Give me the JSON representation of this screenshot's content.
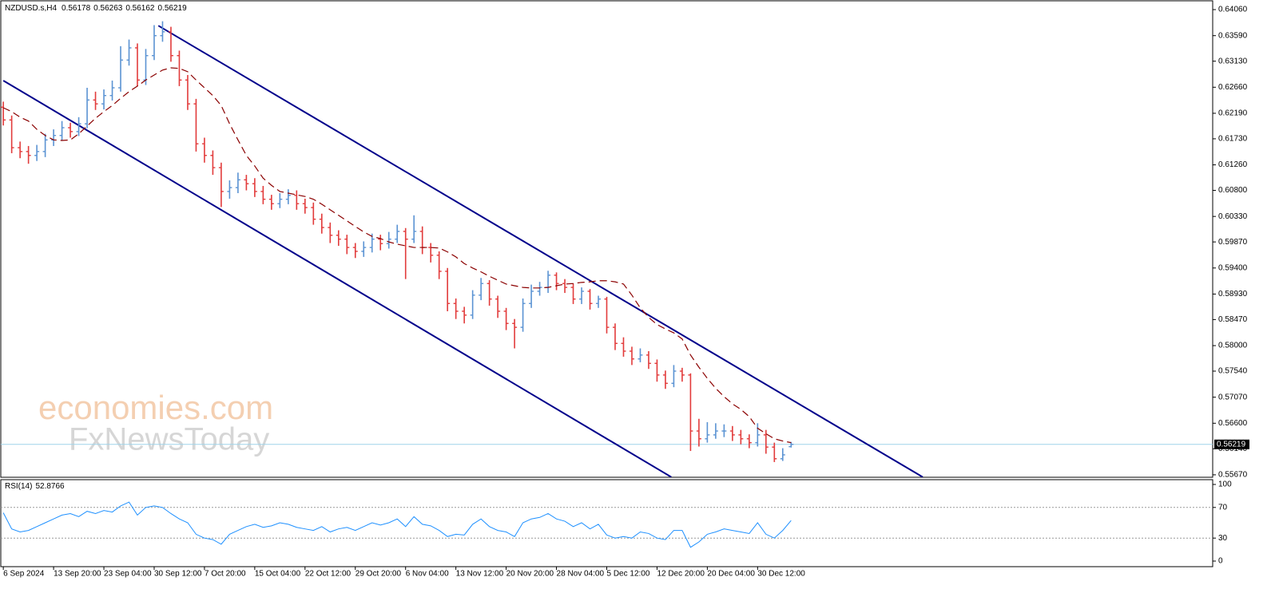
{
  "chart_data": [
    {
      "type": "ohlc",
      "title": "NZDUSD.s,H4",
      "up_color": "#5b93d3",
      "down_color": "#e23b3b",
      "xlim": [
        -0.3,
        144.3
      ],
      "ylim": [
        0.5564,
        0.6419
      ],
      "yticks": [
        {
          "value": 0.6406,
          "label": "0.64060"
        },
        {
          "value": 0.6359,
          "label": "0.63590"
        },
        {
          "value": 0.6313,
          "label": "0.63130"
        },
        {
          "value": 0.6266,
          "label": "0.62660"
        },
        {
          "value": 0.6219,
          "label": "0.62190"
        },
        {
          "value": 0.6173,
          "label": "0.61730"
        },
        {
          "value": 0.6126,
          "label": "0.61260"
        },
        {
          "value": 0.608,
          "label": "0.60800"
        },
        {
          "value": 0.6033,
          "label": "0.60330"
        },
        {
          "value": 0.5987,
          "label": "0.59870"
        },
        {
          "value": 0.594,
          "label": "0.59400"
        },
        {
          "value": 0.5893,
          "label": "0.58930"
        },
        {
          "value": 0.5847,
          "label": "0.58470"
        },
        {
          "value": 0.58,
          "label": "0.58000"
        },
        {
          "value": 0.5754,
          "label": "0.57540"
        },
        {
          "value": 0.5707,
          "label": "0.57070"
        },
        {
          "value": 0.566,
          "label": "0.56600"
        },
        {
          "value": 0.5614,
          "label": "0.56140"
        },
        {
          "value": 0.5567,
          "label": "0.55670"
        }
      ],
      "grid": false,
      "open": [
        0.623,
        0.6207,
        0.6157,
        0.615,
        0.6143,
        0.615,
        0.6171,
        0.6179,
        0.6193,
        0.6186,
        0.62,
        0.6243,
        0.6236,
        0.6251,
        0.6265,
        0.6315,
        0.6337,
        0.6279,
        0.6323,
        0.6359,
        0.6366,
        0.6323,
        0.6279,
        0.6236,
        0.6164,
        0.6143,
        0.6121,
        0.6078,
        0.6085,
        0.6099,
        0.6092,
        0.6078,
        0.6064,
        0.6056,
        0.6064,
        0.6071,
        0.6056,
        0.6049,
        0.6028,
        0.6013,
        0.5999,
        0.5992,
        0.5977,
        0.597,
        0.5977,
        0.5992,
        0.5984,
        0.5992,
        0.6006,
        0.5992,
        0.6006,
        0.5977,
        0.5963,
        0.5934,
        0.5876,
        0.5862,
        0.5855,
        0.5891,
        0.5912,
        0.5884,
        0.5862,
        0.584,
        0.5833,
        0.5876,
        0.5898,
        0.5905,
        0.5927,
        0.5912,
        0.5905,
        0.5884,
        0.5898,
        0.5876,
        0.5884,
        0.5833,
        0.5804,
        0.579,
        0.5776,
        0.5783,
        0.5768,
        0.5747,
        0.5732,
        0.5754,
        0.5747,
        0.5646,
        0.5632,
        0.5639,
        0.5646,
        0.5646,
        0.5639,
        0.5632,
        0.5625,
        0.5639,
        0.5617,
        0.5596,
        0.56178
      ],
      "high": [
        0.624,
        0.6215,
        0.6168,
        0.616,
        0.6162,
        0.6182,
        0.619,
        0.6205,
        0.6202,
        0.6212,
        0.6265,
        0.6258,
        0.6262,
        0.6278,
        0.634,
        0.6352,
        0.6345,
        0.6335,
        0.6378,
        0.6385,
        0.6375,
        0.6332,
        0.6288,
        0.6245,
        0.6175,
        0.6152,
        0.613,
        0.6098,
        0.6112,
        0.6108,
        0.6102,
        0.6088,
        0.6072,
        0.6075,
        0.6082,
        0.608,
        0.6065,
        0.6058,
        0.6038,
        0.6022,
        0.6008,
        0.6,
        0.5985,
        0.5988,
        0.6002,
        0.6,
        0.6005,
        0.6018,
        0.6012,
        0.6035,
        0.6015,
        0.5985,
        0.597,
        0.594,
        0.5885,
        0.587,
        0.59,
        0.5922,
        0.5918,
        0.589,
        0.5868,
        0.5848,
        0.5885,
        0.591,
        0.5915,
        0.5935,
        0.5932,
        0.592,
        0.5912,
        0.5905,
        0.5902,
        0.589,
        0.5888,
        0.584,
        0.5815,
        0.5798,
        0.5795,
        0.579,
        0.5775,
        0.5755,
        0.5765,
        0.576,
        0.575,
        0.5668,
        0.5662,
        0.566,
        0.5658,
        0.5655,
        0.5648,
        0.564,
        0.566,
        0.5648,
        0.5625,
        0.5615,
        0.56263
      ],
      "low": [
        0.6197,
        0.6147,
        0.6138,
        0.6128,
        0.6133,
        0.614,
        0.616,
        0.617,
        0.6175,
        0.6178,
        0.6192,
        0.6225,
        0.6226,
        0.6242,
        0.6258,
        0.6305,
        0.6268,
        0.627,
        0.6315,
        0.6348,
        0.6312,
        0.6268,
        0.6225,
        0.615,
        0.613,
        0.6108,
        0.605,
        0.6065,
        0.6075,
        0.608,
        0.6068,
        0.6055,
        0.6045,
        0.6048,
        0.6055,
        0.6045,
        0.6038,
        0.6018,
        0.6002,
        0.5985,
        0.598,
        0.5965,
        0.5958,
        0.596,
        0.5968,
        0.5972,
        0.5975,
        0.5985,
        0.592,
        0.5985,
        0.5965,
        0.595,
        0.592,
        0.5862,
        0.5848,
        0.584,
        0.5848,
        0.5882,
        0.5872,
        0.585,
        0.5828,
        0.5795,
        0.5825,
        0.5868,
        0.589,
        0.5895,
        0.59,
        0.5895,
        0.5875,
        0.5875,
        0.5865,
        0.5868,
        0.5822,
        0.5792,
        0.578,
        0.5765,
        0.577,
        0.5758,
        0.5735,
        0.5722,
        0.5725,
        0.5735,
        0.561,
        0.5618,
        0.5625,
        0.5632,
        0.5635,
        0.5628,
        0.5622,
        0.5615,
        0.5618,
        0.5605,
        0.559,
        0.5592,
        0.56162
      ],
      "close": [
        0.6207,
        0.6157,
        0.615,
        0.6143,
        0.615,
        0.6171,
        0.6179,
        0.6193,
        0.6186,
        0.62,
        0.6243,
        0.6236,
        0.6251,
        0.6265,
        0.6315,
        0.6337,
        0.6279,
        0.6323,
        0.6359,
        0.6366,
        0.6323,
        0.6279,
        0.6236,
        0.6164,
        0.6143,
        0.6121,
        0.6078,
        0.6085,
        0.6099,
        0.6092,
        0.6078,
        0.6064,
        0.6056,
        0.6064,
        0.6071,
        0.6056,
        0.6049,
        0.6028,
        0.6013,
        0.5999,
        0.5992,
        0.5977,
        0.597,
        0.5977,
        0.5992,
        0.5984,
        0.5992,
        0.6006,
        0.5992,
        0.6006,
        0.5977,
        0.5963,
        0.5934,
        0.5876,
        0.5862,
        0.5855,
        0.5891,
        0.5912,
        0.5884,
        0.5862,
        0.584,
        0.5833,
        0.5876,
        0.5898,
        0.5905,
        0.5927,
        0.5912,
        0.5905,
        0.5884,
        0.5898,
        0.5876,
        0.5884,
        0.5833,
        0.5804,
        0.579,
        0.5776,
        0.5783,
        0.5768,
        0.5747,
        0.5732,
        0.5754,
        0.5747,
        0.5646,
        0.5632,
        0.5639,
        0.5646,
        0.5646,
        0.5639,
        0.5632,
        0.5625,
        0.5639,
        0.5617,
        0.5596,
        0.5603,
        0.56219
      ],
      "series": [
        {
          "color": "#8b0000",
          "dash": true,
          "values": [
            0.6229,
            0.6222,
            0.6212,
            0.6205,
            0.619,
            0.6179,
            0.6171,
            0.617,
            0.6171,
            0.6182,
            0.6196,
            0.621,
            0.6222,
            0.6233,
            0.6246,
            0.6258,
            0.6268,
            0.6279,
            0.6288,
            0.6297,
            0.6301,
            0.63,
            0.6294,
            0.6279,
            0.6265,
            0.6251,
            0.6233,
            0.62,
            0.6171,
            0.6143,
            0.6124,
            0.6102,
            0.6089,
            0.6078,
            0.6075,
            0.6072,
            0.6069,
            0.6064,
            0.6055,
            0.6045,
            0.6035,
            0.6025,
            0.6015,
            0.6005,
            0.5997,
            0.5993,
            0.5987,
            0.5983,
            0.598,
            0.5977,
            0.5977,
            0.5977,
            0.5976,
            0.5969,
            0.596,
            0.5948,
            0.594,
            0.5933,
            0.5925,
            0.5918,
            0.5911,
            0.5908,
            0.5905,
            0.5904,
            0.5904,
            0.5905,
            0.5908,
            0.5911,
            0.5912,
            0.5914,
            0.5915,
            0.5917,
            0.5917,
            0.5915,
            0.5911,
            0.5891,
            0.5868,
            0.5851,
            0.5838,
            0.583,
            0.5823,
            0.5812,
            0.5783,
            0.5761,
            0.5741,
            0.5723,
            0.5708,
            0.5695,
            0.5685,
            0.5672,
            0.5651,
            0.5641,
            0.5632,
            0.5628,
            0.5625
          ]
        }
      ],
      "trendlines": [
        {
          "color": "#00008b",
          "x": [
            18.5,
            109.7
          ],
          "y": [
            0.6377,
            0.5563
          ]
        },
        {
          "color": "#00008b",
          "x": [
            0,
            79.7
          ],
          "y": [
            0.6278,
            0.5563
          ]
        }
      ],
      "watermark": [
        "economies.com",
        "FxNewsToday"
      ]
    },
    {
      "type": "line",
      "title": "RSI(14)",
      "color": "#1e90ff",
      "xlim": [
        -0.3,
        144.3
      ],
      "ylim": [
        0,
        100
      ],
      "yticks": [
        100,
        70,
        30,
        0
      ],
      "values": [
        63,
        42,
        38,
        40,
        45,
        50,
        55,
        60,
        62,
        58,
        65,
        62,
        66,
        64,
        72,
        77,
        60,
        70,
        72,
        70,
        62,
        55,
        50,
        35,
        30,
        28,
        22,
        35,
        40,
        45,
        48,
        44,
        46,
        50,
        48,
        44,
        42,
        40,
        45,
        38,
        42,
        44,
        40,
        45,
        50,
        47,
        50,
        55,
        45,
        58,
        48,
        46,
        40,
        32,
        35,
        34,
        48,
        55,
        45,
        40,
        38,
        32,
        50,
        55,
        57,
        62,
        55,
        52,
        45,
        50,
        42,
        48,
        34,
        30,
        32,
        30,
        38,
        36,
        30,
        28,
        40,
        40,
        18,
        25,
        35,
        38,
        42,
        40,
        38,
        36,
        50,
        35,
        30,
        40,
        52.8766
      ],
      "xticks": [
        {
          "value": 0,
          "label": "6 Sep 2024"
        },
        {
          "value": 6,
          "label": "13 Sep 20:00"
        },
        {
          "value": 12,
          "label": "23 Sep 04:00"
        },
        {
          "value": 18,
          "label": "30 Sep 12:00"
        },
        {
          "value": 24,
          "label": "7 Oct 20:00"
        },
        {
          "value": 30,
          "label": "15 Oct 04:00"
        },
        {
          "value": 36,
          "label": "22 Oct 12:00"
        },
        {
          "value": 42,
          "label": "29 Oct 20:00"
        },
        {
          "value": 48,
          "label": "6 Nov 04:00"
        },
        {
          "value": 54,
          "label": "13 Nov 12:00"
        },
        {
          "value": 60,
          "label": "20 Nov 20:00"
        },
        {
          "value": 66,
          "label": "28 Nov 04:00"
        },
        {
          "value": 72,
          "label": "5 Dec 12:00"
        },
        {
          "value": 78,
          "label": "12 Dec 20:00"
        },
        {
          "value": 84,
          "label": "20 Dec 04:00"
        },
        {
          "value": 90,
          "label": "30 Dec 12:00"
        }
      ]
    }
  ]
}
